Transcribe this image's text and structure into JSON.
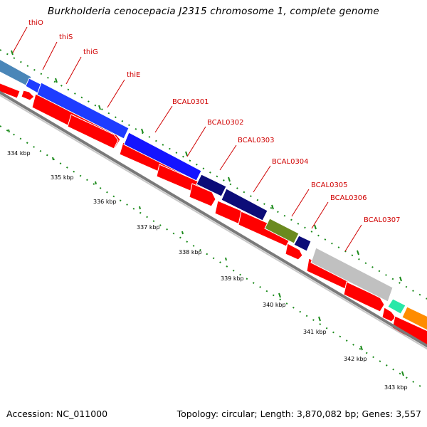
{
  "title": "Burkholderia cenocepacia J2315 chromosome 1, complete genome",
  "footer": {
    "accession": "Accession: NC_011000",
    "summary": "Topology: circular; Length: 3,870,082 bp; Genes: 3,557"
  },
  "colors": {
    "forward_arrow": "#ff0000",
    "backbone_dark": "#7a7a7a",
    "backbone_light": "#c8c8c8",
    "tick": "#1a8a1a",
    "label": "#d00000"
  },
  "tick_labels": [
    "334 kbp",
    "335 kbp",
    "336 kbp",
    "337 kbp",
    "338 kbp",
    "339 kbp",
    "340 kbp",
    "341 kbp",
    "342 kbp",
    "343 kbp"
  ],
  "gene_labels": [
    "thiO",
    "thiS",
    "thiG",
    "thiE",
    "BCAL0301",
    "BCAL0302",
    "BCAL0303",
    "BCAL0304",
    "BCAL0305",
    "BCAL0306",
    "BCAL0307"
  ],
  "features": [
    {
      "name": "unlabeled-left",
      "color": "#4a86b8"
    },
    {
      "name": "thiO",
      "color": "#1e3cff"
    },
    {
      "name": "thiS",
      "color": "#1e3cff"
    },
    {
      "name": "thiG-thiE",
      "color": "#1414ff"
    },
    {
      "name": "BCAL0301",
      "color": "#0c0c78"
    },
    {
      "name": "BCAL0302",
      "color": "#0c0c78"
    },
    {
      "name": "BCAL0303",
      "color": "#6b8a1f"
    },
    {
      "name": "BCAL0304",
      "color": "#0c0c78"
    },
    {
      "name": "BCAL0305",
      "color": "#c0c0c0"
    },
    {
      "name": "BCAL0306-0307",
      "color": "#29e8a8"
    },
    {
      "name": "orange",
      "color": "#ff8c00"
    },
    {
      "name": "olive-right",
      "color": "#6b8a1f"
    }
  ]
}
